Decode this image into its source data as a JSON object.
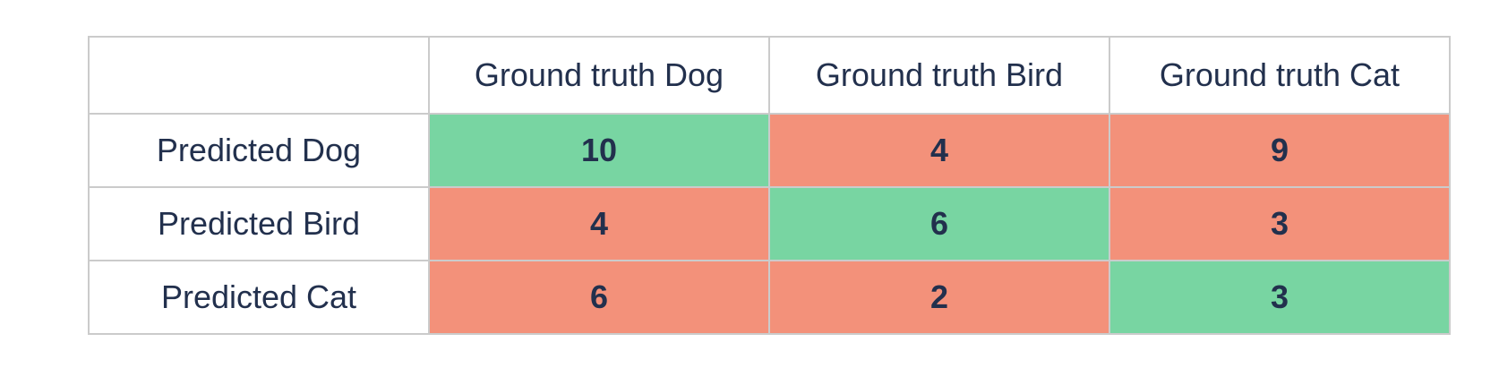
{
  "colors": {
    "correct_bg": "#78d5a2",
    "incorrect_bg": "#f3917a",
    "text": "#22304d",
    "border": "#cbcbcb",
    "background": "#ffffff"
  },
  "table": {
    "corner_label": "",
    "column_headers": [
      "Ground truth Dog",
      "Ground truth Bird",
      "Ground truth Cat"
    ],
    "rows": [
      {
        "label": "Predicted Dog",
        "cells": [
          {
            "value": "10",
            "state": "correct"
          },
          {
            "value": "4",
            "state": "incorrect"
          },
          {
            "value": "9",
            "state": "incorrect"
          }
        ]
      },
      {
        "label": "Predicted Bird",
        "cells": [
          {
            "value": "4",
            "state": "incorrect"
          },
          {
            "value": "6",
            "state": "correct"
          },
          {
            "value": "3",
            "state": "incorrect"
          }
        ]
      },
      {
        "label": "Predicted Cat",
        "cells": [
          {
            "value": "6",
            "state": "incorrect"
          },
          {
            "value": "2",
            "state": "incorrect"
          },
          {
            "value": "3",
            "state": "correct"
          }
        ]
      }
    ]
  },
  "chart_data": {
    "type": "heatmap",
    "x_categories": [
      "Ground truth Dog",
      "Ground truth Bird",
      "Ground truth Cat"
    ],
    "y_categories": [
      "Predicted Dog",
      "Predicted Bird",
      "Predicted Cat"
    ],
    "values": [
      [
        10,
        4,
        9
      ],
      [
        4,
        6,
        3
      ],
      [
        6,
        2,
        3
      ]
    ],
    "cell_states": [
      [
        "correct",
        "incorrect",
        "incorrect"
      ],
      [
        "incorrect",
        "correct",
        "incorrect"
      ],
      [
        "incorrect",
        "incorrect",
        "correct"
      ]
    ],
    "legend": "none",
    "grid": "on"
  }
}
